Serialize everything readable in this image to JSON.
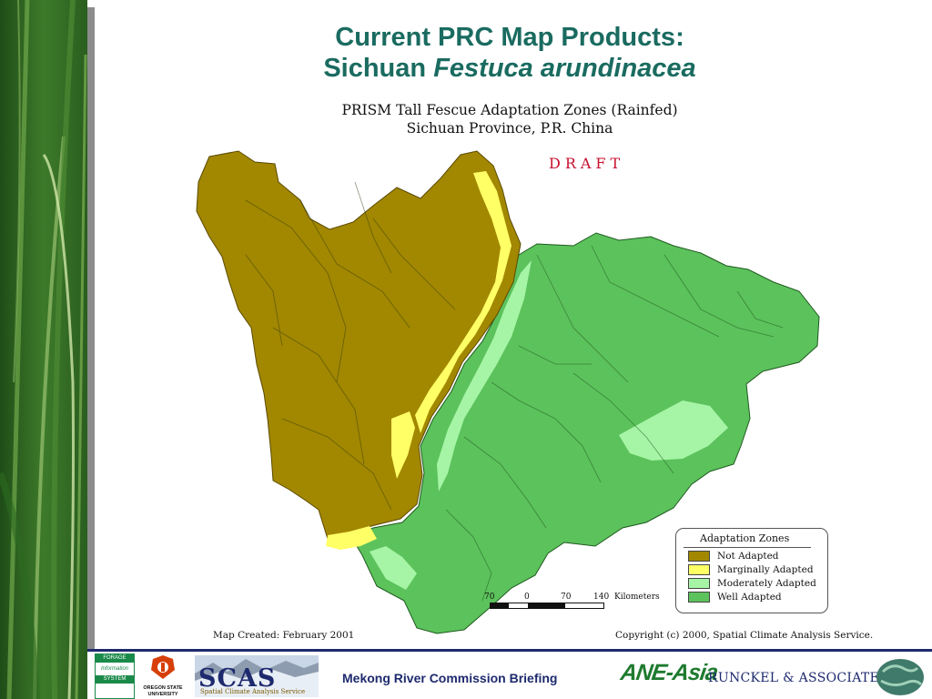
{
  "slide": {
    "title_line1": "Current PRC Map Products:",
    "title_line2_plain": "Sichuan",
    "title_line2_italic": "Festuca arundinacea"
  },
  "map": {
    "title_line1": "PRISM Tall Fescue Adaptation Zones (Rainfed)",
    "title_line2": "Sichuan Province, P.R. China",
    "draft": "DRAFT",
    "legend": {
      "title": "Adaptation Zones",
      "items": [
        {
          "label": "Not Adapted",
          "color": "#a28700"
        },
        {
          "label": "Marginally Adapted",
          "color": "#ffff66"
        },
        {
          "label": "Moderately Adapted",
          "color": "#a6f5a6"
        },
        {
          "label": "Well Adapted",
          "color": "#5cc25c"
        }
      ]
    },
    "scale": {
      "ticks": [
        "70",
        "0",
        "70",
        "140"
      ],
      "unit": "Kilometers"
    },
    "map_created": "Map Created: February 2001",
    "copyright": "Copyright (c) 2000, Spatial Climate Analysis Service."
  },
  "footer": {
    "briefing": "Mekong River Commission Briefing",
    "ane_asia": "ANE-Asia",
    "runckel": "RUNCKEL & ASSOCIATES",
    "osu_name": "OREGON STATE UNIVERSITY",
    "scas": "SCAS",
    "scas_sub": "Spatial Climate Analysis Service",
    "fis_lines": [
      "FORAGE",
      "Information",
      "SYSTEM"
    ]
  }
}
